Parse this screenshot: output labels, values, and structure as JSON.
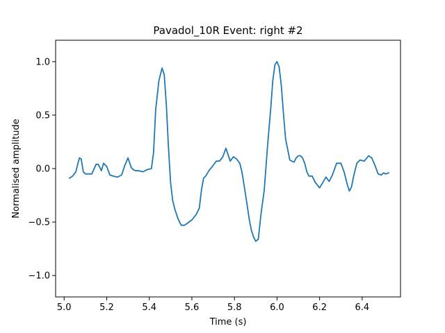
{
  "chart_data": {
    "type": "line",
    "title": "Pavadol_10R Event: right #2",
    "xlabel": "Time (s)",
    "ylabel": "Normalised amplitude",
    "xlim": [
      4.96,
      6.58
    ],
    "ylim": [
      -1.2,
      1.2
    ],
    "xticks": [
      "5.0",
      "5.2",
      "5.4",
      "5.6",
      "5.8",
      "6.0",
      "6.2",
      "6.4"
    ],
    "yticks": [
      "−1.0",
      "−0.5",
      "0.0",
      "0.5",
      "1.0"
    ],
    "grid": false,
    "legend": "none",
    "line_color": "#1f77b4",
    "series": [
      {
        "x": [
          5.025,
          5.04,
          5.055,
          5.065,
          5.072,
          5.08,
          5.09,
          5.1,
          5.115,
          5.13,
          5.15,
          5.16,
          5.175,
          5.185,
          5.2,
          5.215,
          5.23,
          5.25,
          5.27,
          5.285,
          5.3,
          5.315,
          5.325,
          5.335,
          5.35,
          5.37,
          5.39,
          5.41,
          5.42,
          5.43,
          5.445,
          5.46,
          5.47,
          5.48,
          5.49,
          5.5,
          5.51,
          5.52,
          5.535,
          5.55,
          5.565,
          5.58,
          5.6,
          5.62,
          5.635,
          5.645,
          5.655,
          5.665,
          5.68,
          5.7,
          5.715,
          5.73,
          5.745,
          5.76,
          5.77,
          5.78,
          5.795,
          5.81,
          5.825,
          5.835,
          5.84,
          5.855,
          5.87,
          5.88,
          5.89,
          5.9,
          5.912,
          5.925,
          5.94,
          5.955,
          5.97,
          5.98,
          5.99,
          6.0,
          6.01,
          6.02,
          6.03,
          6.04,
          6.06,
          6.08,
          6.09,
          6.1,
          6.11,
          6.12,
          6.13,
          6.14,
          6.15,
          6.165,
          6.18,
          6.2,
          6.215,
          6.23,
          6.245,
          6.26,
          6.28,
          6.3,
          6.315,
          6.33,
          6.34,
          6.35,
          6.36,
          6.375,
          6.39,
          6.41,
          6.43,
          6.445,
          6.46,
          6.475,
          6.49,
          6.5,
          6.51,
          6.525
        ],
        "y": [
          -0.09,
          -0.07,
          -0.03,
          0.05,
          0.1,
          0.09,
          -0.03,
          -0.05,
          -0.05,
          -0.05,
          0.04,
          0.04,
          -0.02,
          0.05,
          0.02,
          -0.06,
          -0.07,
          -0.08,
          -0.06,
          0.03,
          0.1,
          0.01,
          -0.01,
          -0.02,
          -0.02,
          -0.03,
          -0.01,
          0.0,
          0.15,
          0.55,
          0.82,
          0.94,
          0.88,
          0.6,
          0.2,
          -0.13,
          -0.3,
          -0.38,
          -0.47,
          -0.53,
          -0.53,
          -0.51,
          -0.48,
          -0.43,
          -0.37,
          -0.2,
          -0.09,
          -0.07,
          -0.02,
          0.03,
          0.07,
          0.07,
          0.11,
          0.19,
          0.13,
          0.07,
          0.11,
          0.09,
          0.05,
          -0.03,
          -0.09,
          -0.28,
          -0.48,
          -0.58,
          -0.64,
          -0.68,
          -0.66,
          -0.42,
          -0.2,
          0.2,
          0.55,
          0.82,
          0.97,
          1.0,
          0.95,
          0.78,
          0.52,
          0.28,
          0.08,
          0.06,
          0.1,
          0.12,
          0.12,
          0.1,
          0.05,
          -0.03,
          -0.07,
          -0.07,
          -0.13,
          -0.18,
          -0.13,
          -0.08,
          -0.12,
          -0.06,
          0.05,
          0.05,
          -0.03,
          -0.15,
          -0.21,
          -0.17,
          -0.07,
          0.05,
          0.08,
          0.07,
          0.12,
          0.1,
          0.03,
          -0.05,
          -0.06,
          -0.04,
          -0.05,
          -0.04
        ]
      }
    ]
  }
}
